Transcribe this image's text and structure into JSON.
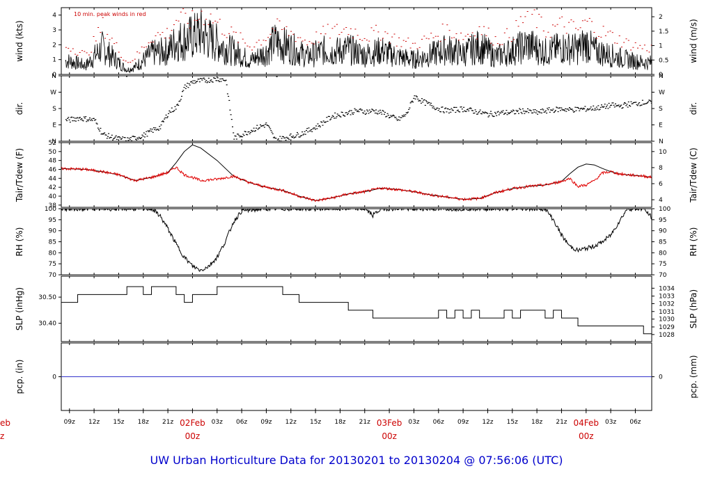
{
  "colors": {
    "series_black": "#000000",
    "peak_red": "#cc0000",
    "tdew_red": "#e00000",
    "pcp_blue": "#3333cc",
    "title_blue": "#0000cc",
    "date_red": "#cc0000"
  },
  "footer": {
    "title": "UW Urban Horticulture Data for 20130201  to  20130204 @ 07:56:06  (UTC)"
  },
  "chart_data": {
    "type": "line",
    "x_axis": {
      "unit": "hours since 2013-02-01 09z",
      "range_hours": [
        -1,
        71
      ],
      "tick_labels": [
        "09z",
        "12z",
        "15z",
        "18z",
        "21z",
        "",
        "03z",
        "06z",
        "09z",
        "12z",
        "15z",
        "18z",
        "21z",
        "",
        "03z",
        "06z",
        "09z",
        "12z",
        "15z",
        "18z",
        "21z",
        "",
        "03z",
        "06z"
      ],
      "tick_hours": [
        0,
        3,
        6,
        9,
        12,
        15,
        18,
        21,
        24,
        27,
        30,
        33,
        36,
        39,
        42,
        45,
        48,
        51,
        54,
        57,
        60,
        63,
        66,
        69
      ],
      "date_markers": [
        {
          "label": "02Feb",
          "sub": "00z",
          "hour": 15
        },
        {
          "label": "03Feb",
          "sub": "00z",
          "hour": 39
        },
        {
          "label": "04Feb",
          "sub": "00z",
          "hour": 63
        }
      ],
      "clipped_left_labels": [
        "eb",
        "z"
      ]
    },
    "panels": [
      {
        "id": "wind",
        "ylabel_left": "wind (kts)",
        "ylabel_right": "wind (m/s)",
        "ylim": [
          0,
          4.5
        ],
        "left_ticks": [
          "0",
          "1",
          "2",
          "3",
          "4"
        ],
        "left_tick_values": [
          0,
          1,
          2,
          3,
          4
        ],
        "right_ticks": [
          "0",
          "0.5",
          "1",
          "1.5",
          "2"
        ],
        "right_tick_values_kts": [
          0,
          0.972,
          1.944,
          2.916,
          3.888
        ],
        "annotation": "10 min. peak winds in red",
        "series": [
          {
            "name": "wind speed",
            "style": "line",
            "color": "#000000",
            "x": [
              0,
              2,
              3,
              4,
              5,
              7,
              8,
              10,
              12,
              13,
              15,
              16,
              17,
              19,
              21,
              22,
              24,
              25,
              27,
              29,
              31,
              32,
              34,
              36,
              38,
              40,
              42,
              44,
              46,
              48,
              50,
              52,
              54,
              56,
              58,
              60,
              62,
              63,
              64,
              66,
              68,
              70
            ],
            "y": [
              0.9,
              0.6,
              1.2,
              1.8,
              1.3,
              0.3,
              0.5,
              1.4,
              1.6,
              2.2,
              2.5,
              2.8,
              2.4,
              1.8,
              1.3,
              0.9,
              1.5,
              2.2,
              1.8,
              1.2,
              1.6,
              1.5,
              1.7,
              1.3,
              1.6,
              1.2,
              1.0,
              1.3,
              1.7,
              1.4,
              1.9,
              1.2,
              1.6,
              2.0,
              1.5,
              1.8,
              1.7,
              2.1,
              1.6,
              1.3,
              1.0,
              0.8
            ]
          },
          {
            "name": "10 min. peak winds",
            "style": "points",
            "color": "#cc0000",
            "x": [
              0,
              2,
              3,
              4,
              5,
              7,
              8,
              10,
              12,
              13,
              15,
              16,
              17,
              19,
              21,
              22,
              24,
              25,
              27,
              29,
              31,
              32,
              34,
              36,
              38,
              40,
              42,
              44,
              46,
              48,
              50,
              52,
              54,
              56,
              58,
              60,
              62,
              63,
              64,
              66,
              68,
              70
            ],
            "y": [
              1.9,
              1.3,
              2.3,
              3.3,
              2.4,
              0.8,
              1.2,
              2.6,
              2.8,
              3.8,
              3.6,
              4.1,
              3.9,
              3.0,
              2.3,
              1.9,
              2.6,
              3.2,
              2.8,
              2.2,
              2.8,
              2.9,
              3.1,
              2.6,
              2.9,
              2.3,
              2.0,
              2.5,
              3.0,
              2.6,
              3.1,
              2.3,
              2.8,
              4.3,
              2.9,
              3.4,
              3.0,
              3.6,
              3.1,
              2.6,
              2.1,
              1.8
            ]
          }
        ]
      },
      {
        "id": "dir",
        "ylabel_left": "dir.",
        "ylabel_right": "dir.",
        "ylim": [
          0,
          360
        ],
        "left_ticks": [
          "N",
          "E",
          "S",
          "W",
          "N"
        ],
        "right_ticks": [
          "N",
          "E",
          "S",
          "W",
          "N"
        ],
        "tick_values": [
          0,
          90,
          180,
          270,
          360
        ],
        "series": [
          {
            "name": "wind direction",
            "style": "points",
            "color": "#000000",
            "x": [
              0,
              1,
              2,
              3,
              4,
              5,
              6,
              7,
              8,
              9,
              10,
              11,
              12,
              13,
              14,
              15,
              16,
              17,
              18,
              19,
              20,
              21,
              22,
              23,
              24,
              25,
              26,
              27,
              28,
              29,
              30,
              31,
              32,
              33,
              34,
              35,
              36,
              37,
              38,
              39,
              40,
              41,
              42,
              43,
              44,
              45,
              46,
              47,
              48,
              49,
              50,
              51,
              52,
              53,
              54,
              55,
              56,
              57,
              58,
              59,
              60,
              61,
              62,
              63,
              64,
              65,
              66,
              67,
              68,
              69,
              70
            ],
            "y": [
              120,
              130,
              125,
              118,
              40,
              25,
              15,
              10,
              20,
              35,
              60,
              80,
              160,
              190,
              300,
              330,
              335,
              340,
              345,
              340,
              20,
              40,
              60,
              80,
              95,
              10,
              20,
              30,
              40,
              60,
              80,
              110,
              140,
              150,
              160,
              170,
              165,
              170,
              160,
              140,
              120,
              150,
              250,
              220,
              200,
              180,
              170,
              175,
              180,
              170,
              160,
              150,
              155,
              160,
              160,
              170,
              165,
              160,
              170,
              175,
              180,
              175,
              178,
              180,
              185,
              190,
              200,
              195,
              205,
              210,
              215
            ]
          }
        ]
      },
      {
        "id": "temp",
        "ylabel_left": "Tair/Tdew (F)",
        "ylabel_right": "Tair/Tdew (C)",
        "ylim": [
          37.5,
          52
        ],
        "left_ticks": [
          "38",
          "40",
          "42",
          "44",
          "46",
          "48",
          "50",
          "52"
        ],
        "left_tick_values": [
          38,
          40,
          42,
          44,
          46,
          48,
          50,
          52
        ],
        "right_ticks": [
          "4",
          "6",
          "8",
          "10"
        ],
        "right_tick_values_f": [
          39.2,
          42.8,
          46.4,
          50.0
        ],
        "series": [
          {
            "name": "Tair",
            "style": "line",
            "color": "#000000",
            "x": [
              -1,
              2,
              4,
              6,
              8,
              10,
              12,
              13,
              14,
              15,
              16,
              18,
              20,
              22,
              24,
              26,
              28,
              30,
              32,
              34,
              36,
              38,
              40,
              42,
              44,
              46,
              48,
              50,
              52,
              54,
              56,
              58,
              60,
              61,
              62,
              63,
              64,
              65,
              66,
              67,
              68,
              70,
              71
            ],
            "y": [
              46.2,
              46.0,
              45.5,
              44.8,
              43.5,
              44.2,
              45.3,
              47.5,
              50.0,
              51.5,
              50.8,
              48.0,
              44.5,
              43.0,
              42.0,
              41.3,
              40.0,
              39.0,
              39.6,
              40.5,
              41.0,
              41.8,
              41.5,
              41.0,
              40.3,
              39.8,
              39.3,
              39.5,
              40.8,
              41.7,
              42.2,
              42.5,
              43.3,
              45.0,
              46.5,
              47.2,
              47.0,
              46.2,
              45.5,
              45.0,
              44.8,
              44.5,
              44.2
            ]
          },
          {
            "name": "Tdew",
            "style": "line",
            "color": "#e00000",
            "x": [
              -1,
              2,
              4,
              6,
              8,
              10,
              12,
              13,
              14,
              15,
              16,
              18,
              20,
              22,
              24,
              26,
              28,
              30,
              32,
              34,
              36,
              38,
              40,
              42,
              44,
              46,
              48,
              50,
              52,
              54,
              56,
              58,
              60,
              61,
              62,
              63,
              64,
              65,
              66,
              67,
              68,
              70,
              71
            ],
            "y": [
              46.2,
              46.0,
              45.5,
              44.8,
              43.5,
              44.2,
              45.3,
              46.5,
              44.8,
              44.2,
              43.5,
              43.8,
              44.5,
              43.0,
              42.0,
              41.3,
              40.0,
              39.0,
              39.6,
              40.5,
              41.0,
              41.8,
              41.5,
              41.0,
              40.3,
              39.8,
              39.3,
              39.5,
              40.8,
              41.7,
              42.2,
              42.5,
              43.3,
              44.0,
              42.2,
              42.5,
              43.5,
              45.2,
              45.5,
              45.0,
              44.8,
              44.5,
              44.2
            ]
          }
        ]
      },
      {
        "id": "rh",
        "ylabel_left": "RH (%)",
        "ylabel_right": "RH (%)",
        "ylim": [
          70,
          100
        ],
        "left_ticks": [
          "70",
          "75",
          "80",
          "85",
          "90",
          "95",
          "100"
        ],
        "right_ticks": [
          "70",
          "75",
          "80",
          "85",
          "90",
          "95",
          "100"
        ],
        "tick_values": [
          70,
          75,
          80,
          85,
          90,
          95,
          100
        ],
        "series": [
          {
            "name": "RH",
            "style": "line",
            "color": "#000000",
            "x": [
              -1,
              4,
              10,
              11,
              12,
              13,
              14,
              15,
              16,
              17,
              18,
              19,
              20,
              21,
              24,
              34,
              36,
              37,
              38,
              57,
              58,
              59,
              60,
              61,
              62,
              63,
              64,
              65,
              66,
              67,
              68,
              70,
              71
            ],
            "y": [
              100,
              100,
              100,
              97,
              91,
              84,
              78,
              74,
              72,
              74,
              78,
              85,
              94,
              99,
              100,
              100,
              100,
              97,
              100,
              100,
              100,
              95,
              88,
              83,
              81,
              82,
              83,
              85,
              88,
              94,
              100,
              100,
              96
            ]
          }
        ]
      },
      {
        "id": "slp",
        "ylabel_left": "SLP (inHg)",
        "ylabel_right": "SLP (hPa)",
        "ylim": [
          30.33,
          30.58
        ],
        "left_ticks": [
          "30.40",
          "30.50"
        ],
        "left_tick_values": [
          30.4,
          30.5
        ],
        "right_ticks": [
          "1028",
          "1029",
          "1030",
          "1031",
          "1032",
          "1033",
          "1034"
        ],
        "right_tick_values_inhg": [
          30.357,
          30.386,
          30.416,
          30.445,
          30.475,
          30.504,
          30.534
        ],
        "series": [
          {
            "name": "SLP",
            "style": "step",
            "color": "#000000",
            "x": [
              -1,
              1,
              7,
              9,
              10,
              13,
              14,
              15,
              17,
              18,
              26,
              28,
              34,
              37,
              40,
              45,
              46,
              47,
              48,
              49,
              50,
              51,
              53,
              54,
              55,
              56,
              58,
              59,
              60,
              62,
              65,
              70,
              71
            ],
            "y": [
              30.48,
              30.51,
              30.54,
              30.51,
              30.54,
              30.51,
              30.48,
              30.51,
              30.51,
              30.54,
              30.51,
              30.48,
              30.45,
              30.42,
              30.42,
              30.45,
              30.42,
              30.45,
              30.42,
              30.45,
              30.42,
              30.42,
              30.45,
              30.42,
              30.45,
              30.45,
              30.42,
              30.45,
              30.42,
              30.39,
              30.39,
              30.36,
              30.36
            ]
          }
        ]
      },
      {
        "id": "pcp",
        "ylabel_left": "pcp. (in)",
        "ylabel_right": "pcp. (mm)",
        "ylim": [
          -1,
          1
        ],
        "left_ticks": [
          "0"
        ],
        "right_ticks": [
          "0"
        ],
        "tick_values": [
          0
        ],
        "series": [
          {
            "name": "precipitation",
            "style": "line",
            "color": "#3333cc",
            "x": [
              -1,
              71
            ],
            "y": [
              0,
              0
            ]
          }
        ]
      }
    ]
  }
}
